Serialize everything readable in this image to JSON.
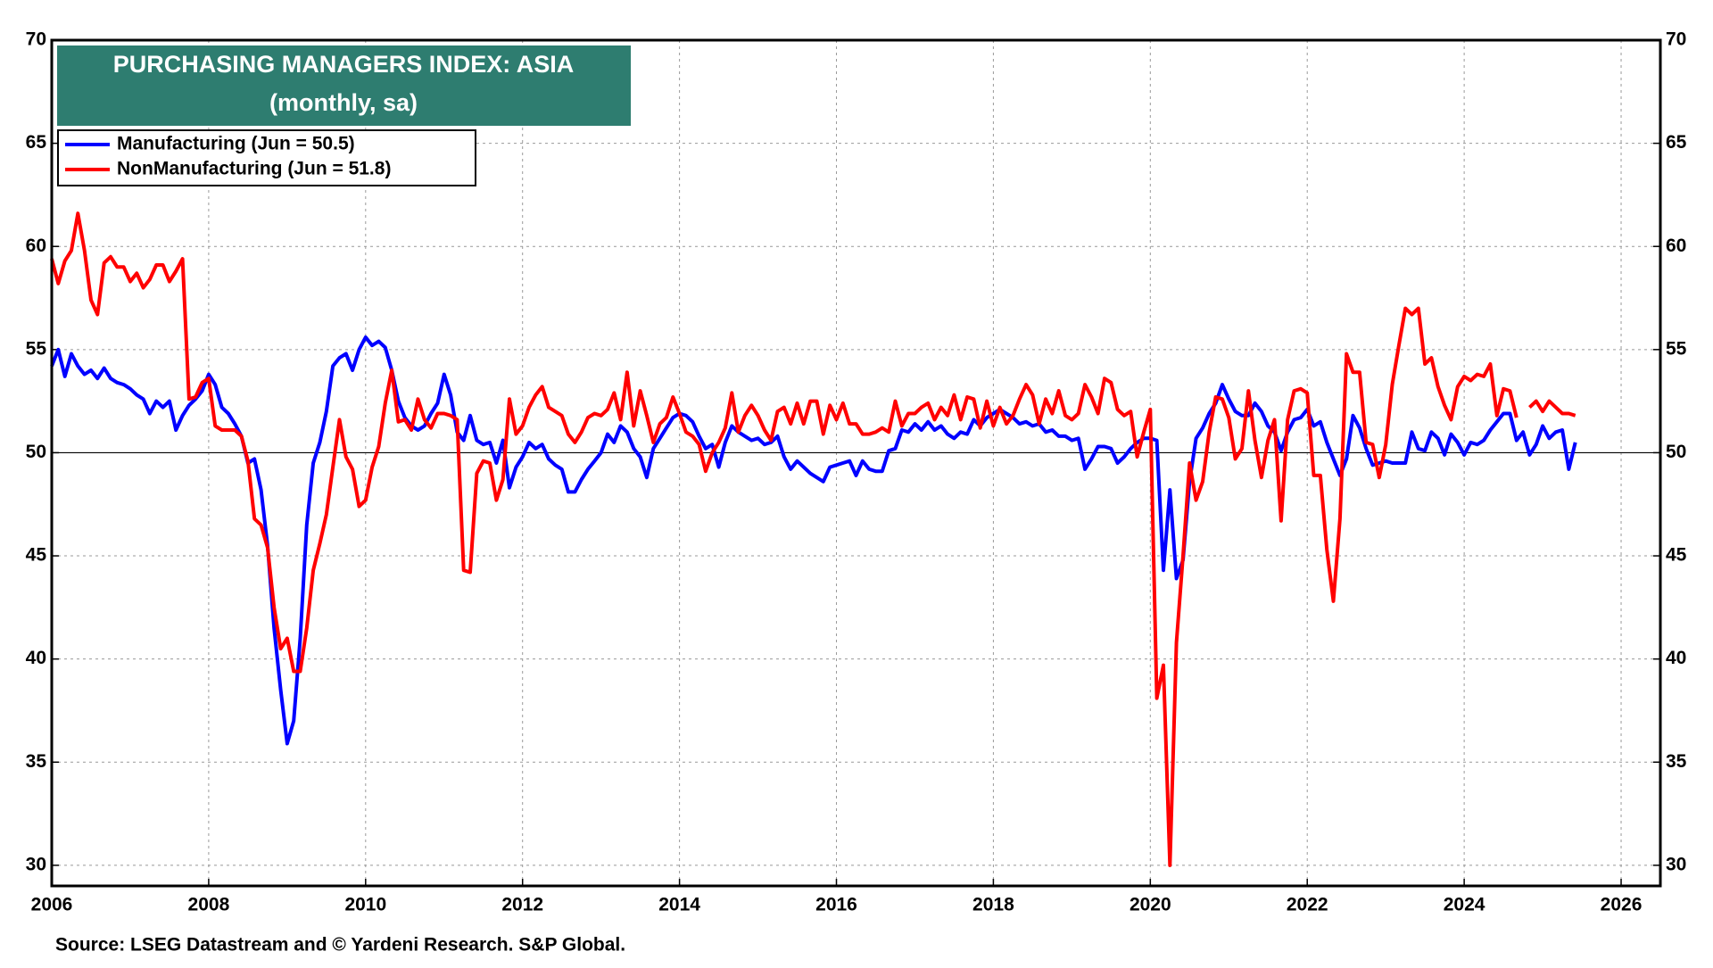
{
  "chart_data": {
    "type": "line",
    "title": "PURCHASING MANAGERS INDEX: ASIA",
    "subtitle": "(monthly, sa)",
    "source": "Source: LSEG Datastream and © Yardeni Research. S&P Global.",
    "xlim": [
      2006,
      2026.5
    ],
    "xticks": [
      2006,
      2008,
      2010,
      2012,
      2014,
      2016,
      2018,
      2020,
      2022,
      2024,
      2026
    ],
    "ylim": [
      29,
      70
    ],
    "yticks": [
      30,
      35,
      40,
      45,
      50,
      55,
      60,
      65,
      70
    ],
    "reference_line": 50,
    "grid": true,
    "legend": "upper left",
    "x": [
      2006,
      2006.083,
      2006.167,
      2006.25,
      2006.333,
      2006.417,
      2006.5,
      2006.583,
      2006.667,
      2006.75,
      2006.833,
      2006.917,
      2007,
      2007.083,
      2007.167,
      2007.25,
      2007.333,
      2007.417,
      2007.5,
      2007.583,
      2007.667,
      2007.75,
      2007.833,
      2007.917,
      2008,
      2008.083,
      2008.167,
      2008.25,
      2008.333,
      2008.417,
      2008.5,
      2008.583,
      2008.667,
      2008.75,
      2008.833,
      2008.917,
      2009,
      2009.083,
      2009.167,
      2009.25,
      2009.333,
      2009.417,
      2009.5,
      2009.583,
      2009.667,
      2009.75,
      2009.833,
      2009.917,
      2010,
      2010.083,
      2010.167,
      2010.25,
      2010.333,
      2010.417,
      2010.5,
      2010.583,
      2010.667,
      2010.75,
      2010.833,
      2010.917,
      2011,
      2011.083,
      2011.167,
      2011.25,
      2011.333,
      2011.417,
      2011.5,
      2011.583,
      2011.667,
      2011.75,
      2011.833,
      2011.917,
      2012,
      2012.083,
      2012.167,
      2012.25,
      2012.333,
      2012.417,
      2012.5,
      2012.583,
      2012.667,
      2012.75,
      2012.833,
      2012.917,
      2013,
      2013.083,
      2013.167,
      2013.25,
      2013.333,
      2013.417,
      2013.5,
      2013.583,
      2013.667,
      2013.75,
      2013.833,
      2013.917,
      2014,
      2014.083,
      2014.167,
      2014.25,
      2014.333,
      2014.417,
      2014.5,
      2014.583,
      2014.667,
      2014.75,
      2014.833,
      2014.917,
      2015,
      2015.083,
      2015.167,
      2015.25,
      2015.333,
      2015.417,
      2015.5,
      2015.583,
      2015.667,
      2015.75,
      2015.833,
      2015.917,
      2016,
      2016.083,
      2016.167,
      2016.25,
      2016.333,
      2016.417,
      2016.5,
      2016.583,
      2016.667,
      2016.75,
      2016.833,
      2016.917,
      2017,
      2017.083,
      2017.167,
      2017.25,
      2017.333,
      2017.417,
      2017.5,
      2017.583,
      2017.667,
      2017.75,
      2017.833,
      2017.917,
      2018,
      2018.083,
      2018.167,
      2018.25,
      2018.333,
      2018.417,
      2018.5,
      2018.583,
      2018.667,
      2018.75,
      2018.833,
      2018.917,
      2019,
      2019.083,
      2019.167,
      2019.25,
      2019.333,
      2019.417,
      2019.5,
      2019.583,
      2019.667,
      2019.75,
      2019.833,
      2019.917,
      2020,
      2020.083,
      2020.167,
      2020.25,
      2020.333,
      2020.417,
      2020.5,
      2020.583,
      2020.667,
      2020.75,
      2020.833,
      2020.917,
      2021,
      2021.083,
      2021.167,
      2021.25,
      2021.333,
      2021.417,
      2021.5,
      2021.583,
      2021.667,
      2021.75,
      2021.833,
      2021.917,
      2022,
      2022.083,
      2022.167,
      2022.25,
      2022.333,
      2022.417,
      2022.5,
      2022.583,
      2022.667,
      2022.75,
      2022.833,
      2022.917,
      2023,
      2023.083,
      2023.167,
      2023.25,
      2023.333,
      2023.417,
      2023.5,
      2023.583,
      2023.667,
      2023.75,
      2023.833,
      2023.917,
      2024,
      2024.083,
      2024.167,
      2024.25,
      2024.333,
      2024.417,
      2024.5,
      2024.583,
      2024.667,
      2024.75,
      2024.833,
      2024.917,
      2025,
      2025.083,
      2025.167,
      2025.25,
      2025.333,
      2025.417
    ],
    "series": [
      {
        "name": "Manufacturing (Jun = 50.5)",
        "color": "#0000ff",
        "values": [
          54.2,
          55.0,
          53.7,
          54.8,
          54.2,
          53.8,
          54.0,
          53.6,
          54.1,
          53.6,
          53.4,
          53.3,
          53.1,
          52.8,
          52.6,
          51.9,
          52.5,
          52.2,
          52.5,
          51.1,
          51.8,
          52.3,
          52.6,
          53.0,
          53.8,
          53.3,
          52.2,
          51.9,
          51.4,
          50.8,
          49.5,
          49.7,
          48.2,
          45.5,
          41.5,
          38.5,
          35.9,
          37.0,
          41.0,
          46.5,
          49.5,
          50.5,
          52.0,
          54.2,
          54.6,
          54.8,
          54.0,
          55.0,
          55.6,
          55.2,
          55.4,
          55.1,
          54.0,
          52.5,
          51.7,
          51.3,
          51.1,
          51.3,
          51.9,
          52.4,
          53.8,
          52.8,
          51.0,
          50.6,
          51.8,
          50.6,
          50.4,
          50.5,
          49.5,
          50.6,
          48.3,
          49.3,
          49.8,
          50.5,
          50.2,
          50.4,
          49.7,
          49.4,
          49.2,
          48.1,
          48.1,
          48.7,
          49.2,
          49.6,
          50.0,
          50.9,
          50.5,
          51.3,
          51.0,
          50.2,
          49.8,
          48.8,
          50.2,
          50.7,
          51.2,
          51.7,
          51.9,
          51.8,
          51.5,
          50.8,
          50.2,
          50.4,
          49.3,
          50.5,
          51.3,
          51.0,
          50.8,
          50.6,
          50.7,
          50.4,
          50.5,
          50.8,
          49.8,
          49.2,
          49.6,
          49.3,
          49.0,
          48.8,
          48.6,
          49.3,
          49.4,
          49.5,
          49.6,
          48.9,
          49.6,
          49.2,
          49.1,
          49.1,
          50.1,
          50.2,
          51.1,
          51.0,
          51.4,
          51.1,
          51.5,
          51.1,
          51.3,
          50.9,
          50.7,
          51.0,
          50.9,
          51.6,
          51.3,
          51.7,
          51.9,
          52.1,
          51.9,
          51.7,
          51.4,
          51.5,
          51.3,
          51.4,
          51.0,
          51.1,
          50.8,
          50.8,
          50.6,
          50.7,
          49.2,
          49.7,
          50.3,
          50.3,
          50.2,
          49.5,
          49.8,
          50.2,
          50.5,
          50.7,
          50.7,
          50.6,
          44.3,
          48.2,
          43.9,
          44.8,
          48.6,
          50.7,
          51.2,
          51.9,
          52.4,
          53.3,
          52.6,
          52.0,
          51.8,
          51.8,
          52.4,
          52.0,
          51.3,
          51.0,
          50.1,
          51.0,
          51.6,
          51.7,
          52.1,
          51.3,
          51.5,
          50.5,
          49.7,
          48.9,
          49.7,
          51.8,
          51.2,
          50.2,
          49.4,
          49.5,
          49.6,
          49.5,
          49.5,
          49.5,
          51.0,
          50.2,
          50.1,
          51.0,
          50.7,
          49.9,
          50.9,
          50.5,
          49.9,
          50.5,
          50.4,
          50.6,
          51.1,
          51.5,
          51.9,
          51.9,
          50.6,
          51.0,
          49.9,
          50.4,
          51.3,
          50.7,
          51.0,
          51.1,
          49.2,
          50.5
        ]
      },
      {
        "name": "NonManufacturing (Jun = 51.8)",
        "color": "#ff0000",
        "values": [
          59.4,
          58.2,
          59.3,
          59.8,
          61.6,
          59.8,
          57.4,
          56.7,
          59.2,
          59.5,
          59.0,
          59.0,
          58.3,
          58.7,
          58.0,
          58.4,
          59.1,
          59.1,
          58.3,
          58.8,
          59.4,
          52.6,
          52.7,
          53.4,
          53.6,
          51.3,
          51.1,
          51.1,
          51.1,
          50.8,
          49.6,
          46.8,
          46.5,
          45.4,
          42.5,
          40.5,
          41.0,
          39.4,
          39.4,
          41.5,
          44.3,
          45.6,
          47.0,
          49.3,
          51.6,
          49.8,
          49.2,
          47.4,
          47.7,
          49.3,
          50.3,
          52.4,
          54.0,
          51.5,
          51.6,
          51.1,
          52.6,
          51.6,
          51.2,
          51.9,
          51.9,
          51.8,
          51.6,
          44.3,
          44.2,
          49.0,
          49.6,
          49.5,
          47.7,
          48.7,
          52.6,
          50.9,
          51.3,
          52.2,
          52.8,
          53.2,
          52.2,
          52.0,
          51.8,
          50.9,
          50.5,
          51.0,
          51.7,
          51.9,
          51.8,
          52.1,
          52.9,
          51.6,
          53.9,
          51.3,
          53.0,
          51.8,
          50.5,
          51.4,
          51.7,
          52.7,
          51.9,
          51.0,
          50.8,
          50.4,
          49.1,
          50.0,
          50.5,
          51.2,
          52.9,
          51.0,
          51.8,
          52.3,
          51.8,
          51.1,
          50.6,
          52.0,
          52.2,
          51.4,
          52.4,
          51.4,
          52.5,
          52.5,
          50.9,
          52.3,
          51.6,
          52.4,
          51.4,
          51.4,
          50.9,
          50.9,
          51.0,
          51.2,
          51.0,
          52.5,
          51.3,
          51.9,
          51.9,
          52.2,
          52.4,
          51.6,
          52.2,
          51.8,
          52.8,
          51.6,
          52.7,
          52.6,
          51.2,
          52.5,
          51.3,
          52.2,
          51.4,
          51.8,
          52.6,
          53.3,
          52.8,
          51.4,
          52.6,
          51.9,
          53.0,
          51.8,
          51.6,
          51.9,
          53.3,
          52.7,
          51.9,
          53.6,
          53.4,
          52.1,
          51.8,
          52.0,
          49.8,
          51.0,
          52.1,
          38.1,
          39.7,
          30.0,
          40.8,
          45.0,
          49.5,
          47.7,
          48.6,
          51.0,
          52.7,
          52.6,
          51.7,
          49.7,
          50.2,
          53.0,
          50.6,
          48.8,
          50.6,
          51.6,
          46.7,
          51.6,
          53.0,
          53.1,
          52.9,
          48.9,
          48.9,
          45.3,
          42.8,
          46.8,
          54.8,
          53.9,
          53.9,
          50.5,
          50.4,
          48.8,
          50.4,
          53.3,
          55.2,
          57.0,
          56.7,
          57.0,
          54.3,
          54.6,
          53.2,
          52.3,
          51.6,
          53.2,
          53.7,
          53.5,
          53.8,
          53.7,
          54.3,
          51.8,
          53.1,
          53.0,
          51.7,
          null,
          52.2,
          52.5,
          52.0,
          52.5,
          52.2,
          51.9,
          51.9,
          51.8
        ]
      }
    ]
  }
}
